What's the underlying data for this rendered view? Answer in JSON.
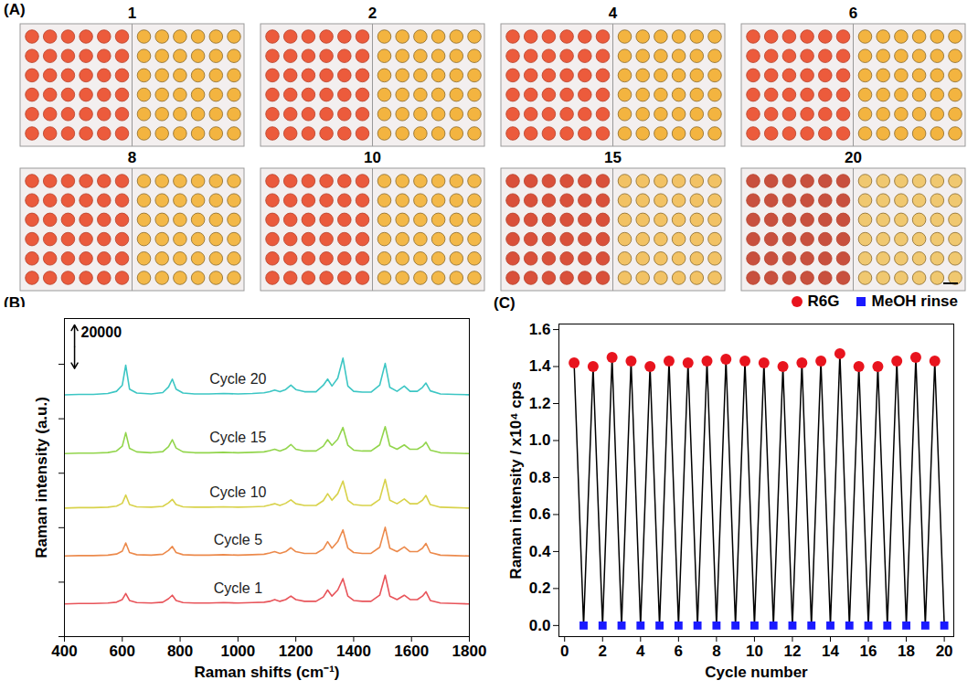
{
  "chart_data": [
    {
      "type": "image_grid",
      "panel": "(A)",
      "dot_grid": [
        6,
        6
      ],
      "tiles": [
        {
          "label": 1,
          "colors": [
            "#ec5b3c",
            "#f3b440"
          ]
        },
        {
          "label": 2,
          "colors": [
            "#ec5b3c",
            "#f3b440"
          ]
        },
        {
          "label": 4,
          "colors": [
            "#ec5b3c",
            "#f3b440"
          ]
        },
        {
          "label": 6,
          "colors": [
            "#ec5b3c",
            "#f3b440"
          ]
        },
        {
          "label": 8,
          "colors": [
            "#ea5a3c",
            "#f3b848"
          ]
        },
        {
          "label": 10,
          "colors": [
            "#ea5a3c",
            "#f3b848"
          ]
        },
        {
          "label": 15,
          "colors": [
            "#d9503a",
            "#f2c264"
          ]
        },
        {
          "label": 20,
          "colors": [
            "#c8503e",
            "#f0c870"
          ]
        }
      ]
    },
    {
      "type": "line",
      "panel": "(B)",
      "x_label": "Raman shifts (cm⁻¹)",
      "y_label": "Raman intensity (a.u.)",
      "xlim": [
        400,
        1800
      ],
      "xticks": [
        400,
        600,
        800,
        1000,
        1200,
        1400,
        1600,
        1800
      ],
      "ylim": [
        0,
        146000
      ],
      "yticks": [
        0,
        25000,
        50000,
        75000,
        100000,
        125000
      ],
      "tick_labels": "x",
      "grid": false,
      "scale_bar": {
        "value": 20000,
        "label": "20000"
      },
      "x": [
        400,
        450,
        500,
        550,
        580,
        600,
        612,
        625,
        650,
        700,
        740,
        760,
        773,
        786,
        810,
        850,
        900,
        950,
        1000,
        1050,
        1090,
        1110,
        1127,
        1145,
        1165,
        1183,
        1200,
        1230,
        1270,
        1295,
        1310,
        1325,
        1345,
        1363,
        1380,
        1400,
        1430,
        1460,
        1490,
        1509,
        1525,
        1550,
        1575,
        1595,
        1620,
        1638,
        1650,
        1665,
        1700,
        1750,
        1800
      ],
      "series": [
        {
          "name": "Cycle 1",
          "color": "#e8545a",
          "values": [
            15000,
            15200,
            15200,
            15400,
            15800,
            17000,
            19800,
            16600,
            15600,
            15400,
            15800,
            17400,
            19000,
            16600,
            15600,
            15400,
            15400,
            15600,
            15400,
            15600,
            15800,
            16200,
            17000,
            16200,
            17000,
            18600,
            17000,
            16200,
            16200,
            18200,
            21400,
            18600,
            21400,
            26600,
            18600,
            16600,
            16200,
            16200,
            19000,
            28200,
            18600,
            17000,
            19000,
            17000,
            17000,
            18600,
            20600,
            16600,
            15400,
            15200,
            15000
          ]
        },
        {
          "name": "Cycle 5",
          "color": "#ec8a4c",
          "values": [
            37000,
            37200,
            37200,
            37400,
            37900,
            39200,
            43000,
            38600,
            37600,
            37400,
            37800,
            39600,
            41400,
            38600,
            37600,
            37400,
            37400,
            37600,
            37400,
            37600,
            37800,
            38400,
            39000,
            38200,
            39000,
            40800,
            39000,
            38200,
            38200,
            40200,
            43600,
            40600,
            43600,
            49000,
            40600,
            38600,
            38200,
            38200,
            41000,
            50200,
            40600,
            39000,
            41200,
            39000,
            39000,
            40600,
            42800,
            38600,
            37400,
            37200,
            37000
          ]
        },
        {
          "name": "Cycle 10",
          "color": "#d8d24a",
          "values": [
            59000,
            59200,
            59200,
            59400,
            59900,
            61200,
            65000,
            60600,
            59600,
            59400,
            59800,
            61400,
            63000,
            60600,
            59600,
            59400,
            59400,
            59600,
            59400,
            59600,
            59800,
            60400,
            61000,
            60200,
            61200,
            62800,
            61000,
            60200,
            60200,
            62400,
            65600,
            62600,
            65600,
            71400,
            62600,
            60600,
            60200,
            60200,
            63000,
            72200,
            62600,
            61000,
            63200,
            61000,
            61000,
            62600,
            64800,
            60600,
            59400,
            59200,
            59000
          ]
        },
        {
          "name": "Cycle 15",
          "color": "#92d54c",
          "values": [
            84000,
            84200,
            84200,
            84500,
            85200,
            87400,
            93600,
            86400,
            84800,
            84400,
            84900,
            87200,
            90400,
            86600,
            84800,
            84400,
            84400,
            84600,
            84400,
            84600,
            84800,
            85400,
            86000,
            85200,
            86200,
            88200,
            86000,
            85200,
            85200,
            87400,
            90400,
            87800,
            90600,
            96000,
            87800,
            85600,
            85200,
            85200,
            88000,
            96400,
            87600,
            86000,
            88000,
            86000,
            86000,
            87400,
            89200,
            85600,
            84400,
            84200,
            84000
          ]
        },
        {
          "name": "Cycle 20",
          "color": "#3cc6c4",
          "values": [
            111000,
            111200,
            111200,
            111600,
            112600,
            115400,
            124600,
            113600,
            111800,
            111400,
            112000,
            114600,
            118200,
            113600,
            111800,
            111400,
            111400,
            111600,
            111400,
            111600,
            111900,
            112400,
            113200,
            112400,
            113400,
            115400,
            113400,
            112400,
            112400,
            115400,
            118200,
            115000,
            118600,
            127800,
            115000,
            112600,
            112200,
            112200,
            115400,
            125400,
            114400,
            112600,
            115000,
            112600,
            112600,
            114400,
            116400,
            112800,
            111400,
            111200,
            111000
          ]
        }
      ]
    },
    {
      "type": "line",
      "panel": "(C)",
      "x_label": "Cycle number",
      "y_label": "Raman intensity / x10⁴ cps",
      "xlim": [
        -0.3,
        20.5
      ],
      "xticks": [
        0,
        2,
        4,
        6,
        8,
        10,
        12,
        14,
        16,
        18,
        20
      ],
      "ylim": [
        -0.06,
        1.63
      ],
      "yticks": [
        {
          "value": 0,
          "label": "0.0"
        },
        0.2,
        0.4,
        0.6,
        0.8,
        {
          "value": 1,
          "label": "1.0"
        },
        1.2,
        1.4,
        1.6
      ],
      "grid": false,
      "legend": "top-right",
      "series": [
        {
          "name": "R6G",
          "color": "#e8141e",
          "marker": "circle",
          "x": [
            0.5,
            1.5,
            2.5,
            3.5,
            4.5,
            5.5,
            6.5,
            7.5,
            8.5,
            9.5,
            10.5,
            11.5,
            12.5,
            13.5,
            14.5,
            15.5,
            16.5,
            17.5,
            18.5,
            19.5
          ],
          "values": [
            1.42,
            1.4,
            1.45,
            1.43,
            1.4,
            1.43,
            1.42,
            1.43,
            1.44,
            1.43,
            1.42,
            1.4,
            1.42,
            1.43,
            1.47,
            1.4,
            1.4,
            1.43,
            1.45,
            1.43
          ]
        },
        {
          "name": "MeOH rinse",
          "color": "#1a1aff",
          "marker": "square",
          "x": [
            1,
            2,
            3,
            4,
            5,
            6,
            7,
            8,
            9,
            10,
            11,
            12,
            13,
            14,
            15,
            16,
            17,
            18,
            19,
            20
          ],
          "values": [
            0,
            0,
            0,
            0,
            0,
            0,
            0,
            0,
            0,
            0,
            0,
            0,
            0,
            0,
            0,
            0,
            0,
            0,
            0,
            0
          ]
        }
      ]
    }
  ]
}
